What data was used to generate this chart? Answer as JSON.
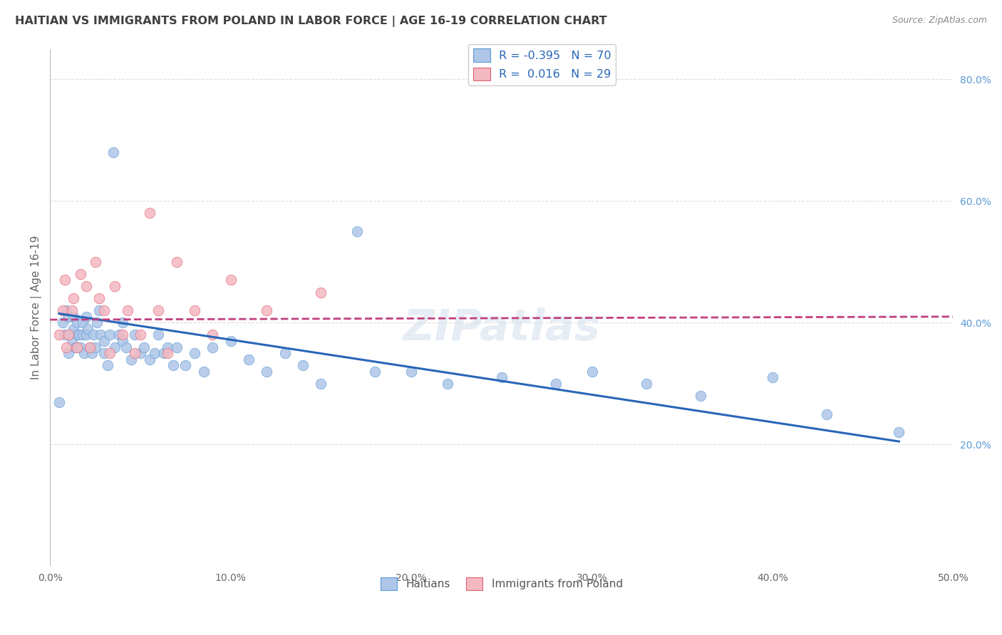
{
  "title": "HAITIAN VS IMMIGRANTS FROM POLAND IN LABOR FORCE | AGE 16-19 CORRELATION CHART",
  "source": "Source: ZipAtlas.com",
  "ylabel": "In Labor Force | Age 16-19",
  "xlim": [
    0.0,
    0.5
  ],
  "ylim": [
    0.0,
    0.85
  ],
  "xticks": [
    0.0,
    0.1,
    0.2,
    0.3,
    0.4,
    0.5
  ],
  "xticklabels": [
    "0.0%",
    "10.0%",
    "20.0%",
    "30.0%",
    "40.0%",
    "50.0%"
  ],
  "yticks_right": [
    0.2,
    0.4,
    0.6,
    0.8
  ],
  "yticklabels_right": [
    "20.0%",
    "40.0%",
    "60.0%",
    "80.0%"
  ],
  "scatter_color_haitian": "#aec6e8",
  "scatter_edge_haitian": "#5b9bd5",
  "scatter_color_poland": "#f4b8c1",
  "scatter_edge_poland": "#e06070",
  "line_color_haitian": "#2966b8",
  "line_color_poland": "#c04080",
  "watermark": "ZIPatlas",
  "background_color": "#ffffff",
  "grid_color": "#dddddd",
  "title_color": "#404040",
  "right_tick_color": "#5b9bd5",
  "R_haitian": "-0.395",
  "N_haitian": "70",
  "R_poland": "0.016",
  "N_poland": "29",
  "haitian_x": [
    0.005,
    0.007,
    0.008,
    0.009,
    0.01,
    0.01,
    0.012,
    0.013,
    0.013,
    0.014,
    0.015,
    0.015,
    0.016,
    0.017,
    0.018,
    0.018,
    0.019,
    0.02,
    0.02,
    0.021,
    0.022,
    0.023,
    0.024,
    0.025,
    0.026,
    0.027,
    0.028,
    0.03,
    0.03,
    0.032,
    0.033,
    0.035,
    0.036,
    0.038,
    0.04,
    0.04,
    0.042,
    0.045,
    0.047,
    0.05,
    0.052,
    0.055,
    0.058,
    0.06,
    0.063,
    0.065,
    0.068,
    0.07,
    0.075,
    0.08,
    0.085,
    0.09,
    0.1,
    0.11,
    0.12,
    0.13,
    0.14,
    0.15,
    0.17,
    0.18,
    0.2,
    0.22,
    0.25,
    0.28,
    0.3,
    0.33,
    0.36,
    0.4,
    0.43,
    0.47
  ],
  "haitian_y": [
    0.27,
    0.4,
    0.38,
    0.42,
    0.41,
    0.35,
    0.37,
    0.39,
    0.41,
    0.36,
    0.38,
    0.4,
    0.38,
    0.36,
    0.38,
    0.4,
    0.35,
    0.38,
    0.41,
    0.39,
    0.36,
    0.35,
    0.38,
    0.36,
    0.4,
    0.42,
    0.38,
    0.35,
    0.37,
    0.33,
    0.38,
    0.68,
    0.36,
    0.38,
    0.37,
    0.4,
    0.36,
    0.34,
    0.38,
    0.35,
    0.36,
    0.34,
    0.35,
    0.38,
    0.35,
    0.36,
    0.33,
    0.36,
    0.33,
    0.35,
    0.32,
    0.36,
    0.37,
    0.34,
    0.32,
    0.35,
    0.33,
    0.3,
    0.55,
    0.32,
    0.32,
    0.3,
    0.31,
    0.3,
    0.32,
    0.3,
    0.28,
    0.31,
    0.25,
    0.22
  ],
  "haitian_line_x": [
    0.005,
    0.47
  ],
  "haitian_line_y": [
    0.415,
    0.205
  ],
  "poland_x": [
    0.005,
    0.007,
    0.008,
    0.009,
    0.01,
    0.012,
    0.013,
    0.015,
    0.017,
    0.02,
    0.022,
    0.025,
    0.027,
    0.03,
    0.033,
    0.036,
    0.04,
    0.043,
    0.047,
    0.05,
    0.055,
    0.06,
    0.065,
    0.07,
    0.08,
    0.09,
    0.1,
    0.12,
    0.15
  ],
  "poland_y": [
    0.38,
    0.42,
    0.47,
    0.36,
    0.38,
    0.42,
    0.44,
    0.36,
    0.48,
    0.46,
    0.36,
    0.5,
    0.44,
    0.42,
    0.35,
    0.46,
    0.38,
    0.42,
    0.35,
    0.38,
    0.58,
    0.42,
    0.35,
    0.5,
    0.42,
    0.38,
    0.47,
    0.42,
    0.45
  ],
  "poland_line_x": [
    0.0,
    0.5
  ],
  "poland_line_y": [
    0.405,
    0.41
  ]
}
